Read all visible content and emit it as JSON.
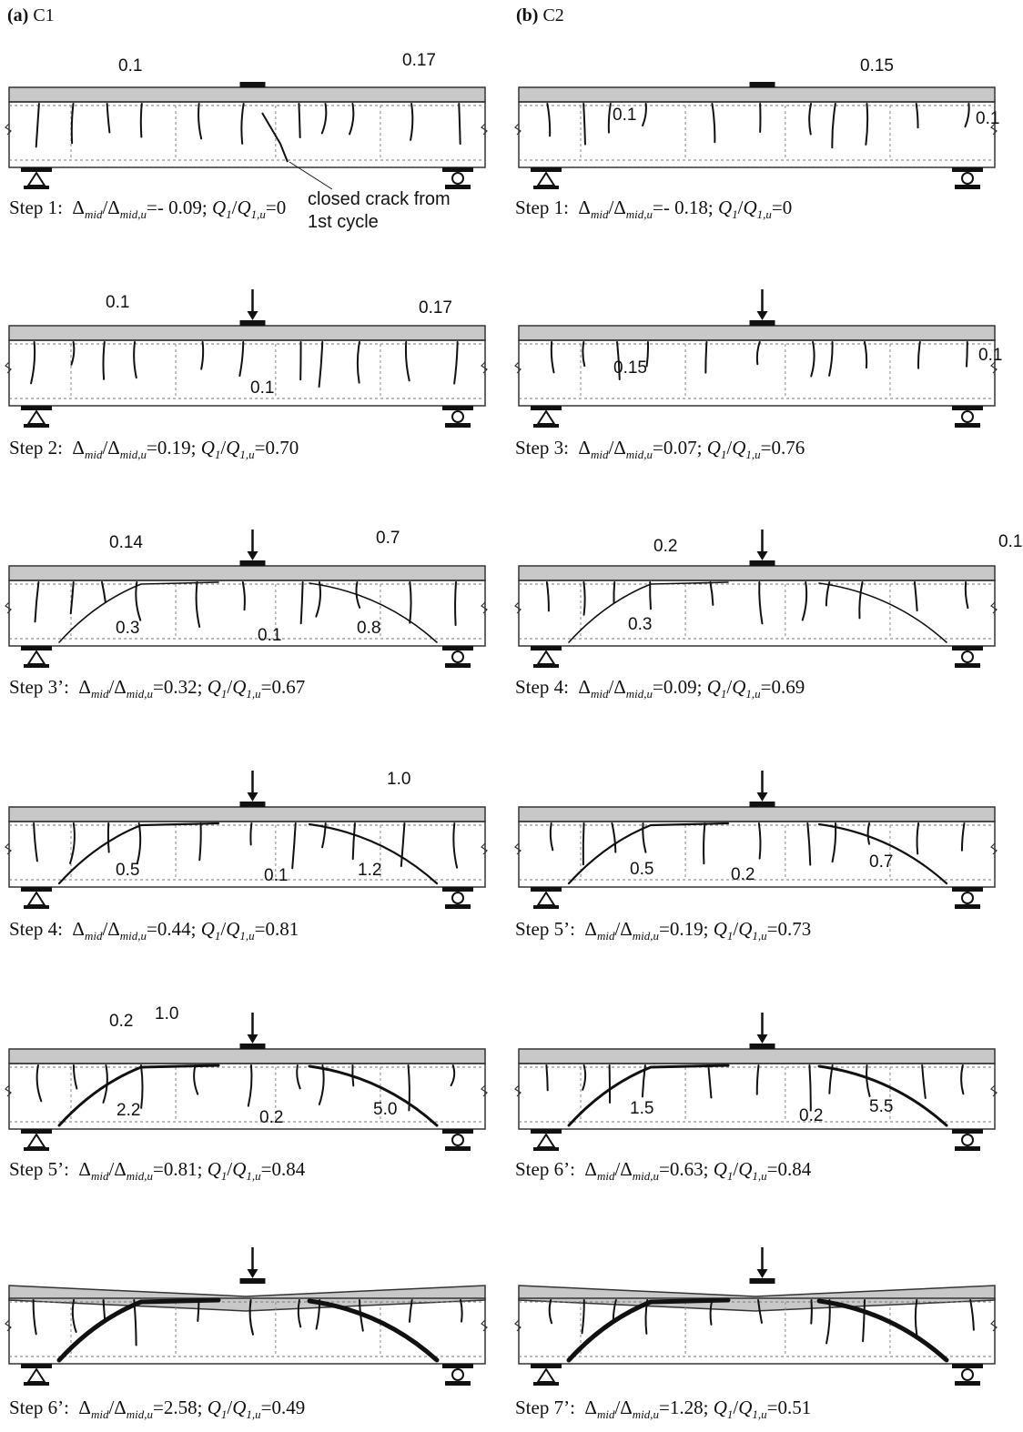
{
  "columns": [
    {
      "tag": "(a)",
      "name": "C1"
    },
    {
      "tag": "(b)",
      "name": "C2"
    }
  ],
  "annotation_closed_crack": [
    "closed crack from",
    "1st cycle"
  ],
  "panels": [
    {
      "id": "c1-s1",
      "col": 0,
      "row": 0,
      "load": false,
      "deformed": false,
      "caption": {
        "step": "Step 1:",
        "d": "- 0.09",
        "q": "0"
      },
      "labels": [
        "0.1",
        "0.17"
      ]
    },
    {
      "id": "c1-s2",
      "col": 0,
      "row": 1,
      "load": true,
      "deformed": false,
      "caption": {
        "step": "Step 2:",
        "d": "0.19",
        "q": "0.70"
      },
      "labels": [
        "0.1",
        "0.17",
        "0.1"
      ]
    },
    {
      "id": "c1-s3",
      "col": 0,
      "row": 2,
      "load": true,
      "deformed": false,
      "caption": {
        "step": "Step 3’:",
        "d": "0.32",
        "q": "0.67"
      },
      "labels": [
        "0.14",
        "0.7",
        "0.3",
        "0.1",
        "0.8"
      ]
    },
    {
      "id": "c1-s4",
      "col": 0,
      "row": 3,
      "load": true,
      "deformed": false,
      "caption": {
        "step": "Step 4:",
        "d": "0.44",
        "q": "0.81"
      },
      "labels": [
        "1.0",
        "0.5",
        "0.1",
        "1.2"
      ]
    },
    {
      "id": "c1-s5",
      "col": 0,
      "row": 4,
      "load": true,
      "deformed": false,
      "caption": {
        "step": "Step 5’:",
        "d": "0.81",
        "q": "0.84"
      },
      "labels": [
        "0.2",
        "1.0",
        "2.2",
        "0.2",
        "5.0"
      ]
    },
    {
      "id": "c1-s6",
      "col": 0,
      "row": 5,
      "load": true,
      "deformed": true,
      "caption": {
        "step": "Step 6’:",
        "d": "2.58",
        "q": "0.49"
      },
      "labels": []
    },
    {
      "id": "c2-s1",
      "col": 1,
      "row": 0,
      "load": false,
      "deformed": false,
      "caption": {
        "step": "Step 1:",
        "d": "- 0.18",
        "q": "0"
      },
      "labels": [
        "0.15",
        "0.1",
        "0.1"
      ]
    },
    {
      "id": "c2-s3",
      "col": 1,
      "row": 1,
      "load": true,
      "deformed": false,
      "caption": {
        "step": "Step 3:",
        "d": "0.07",
        "q": "0.76"
      },
      "labels": [
        "0.15",
        "0.1"
      ]
    },
    {
      "id": "c2-s4",
      "col": 1,
      "row": 2,
      "load": true,
      "deformed": false,
      "caption": {
        "step": "Step 4:",
        "d": "0.09",
        "q": "0.69"
      },
      "labels": [
        "0.2",
        "0.1",
        "0.3"
      ]
    },
    {
      "id": "c2-s5",
      "col": 1,
      "row": 3,
      "load": true,
      "deformed": false,
      "caption": {
        "step": "Step 5’:",
        "d": "0.19",
        "q": "0.73"
      },
      "labels": [
        "0.5",
        "0.2",
        "0.7"
      ]
    },
    {
      "id": "c2-s6",
      "col": 1,
      "row": 4,
      "load": true,
      "deformed": false,
      "caption": {
        "step": "Step 6’:",
        "d": "0.63",
        "q": "0.84"
      },
      "labels": [
        "1.5",
        "0.2",
        "5.5"
      ]
    },
    {
      "id": "c2-s7",
      "col": 1,
      "row": 5,
      "load": true,
      "deformed": true,
      "caption": {
        "step": "Step 7’:",
        "d": "1.28",
        "q": "0.51"
      },
      "labels": []
    }
  ]
}
